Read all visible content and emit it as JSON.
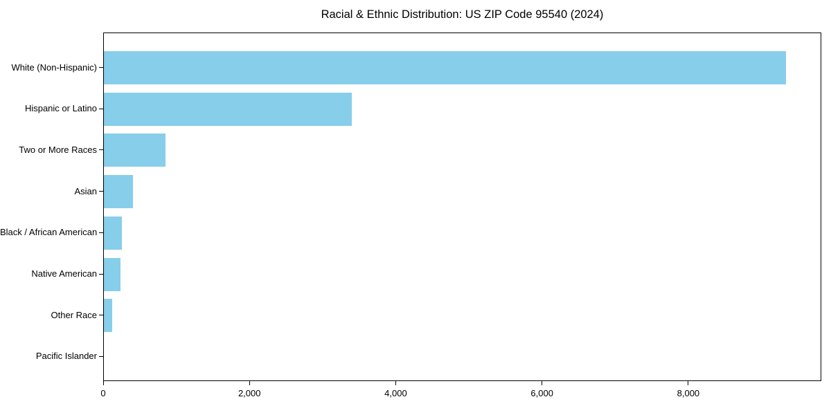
{
  "chart_data": {
    "type": "bar",
    "orientation": "horizontal",
    "title": "Racial & Ethnic Distribution: US ZIP Code 95540 (2024)",
    "categories": [
      "White (Non-Hispanic)",
      "Hispanic or Latino",
      "Two or More Races",
      "Asian",
      "Black / African American",
      "Native American",
      "Other Race",
      "Pacific Islander"
    ],
    "values": [
      9330,
      3390,
      845,
      400,
      245,
      225,
      110,
      0
    ],
    "xlabel": "",
    "ylabel": "",
    "xlim": [
      0,
      9800
    ],
    "x_ticks": [
      0,
      2000,
      4000,
      6000,
      8000
    ],
    "x_tick_labels": [
      "0",
      "2,000",
      "4,000",
      "6,000",
      "8,000"
    ],
    "bar_color": "#87CEEB",
    "axis_color": "#000000",
    "text_color": "#000000",
    "background_color": "#ffffff",
    "grid": false,
    "legend": null
  }
}
